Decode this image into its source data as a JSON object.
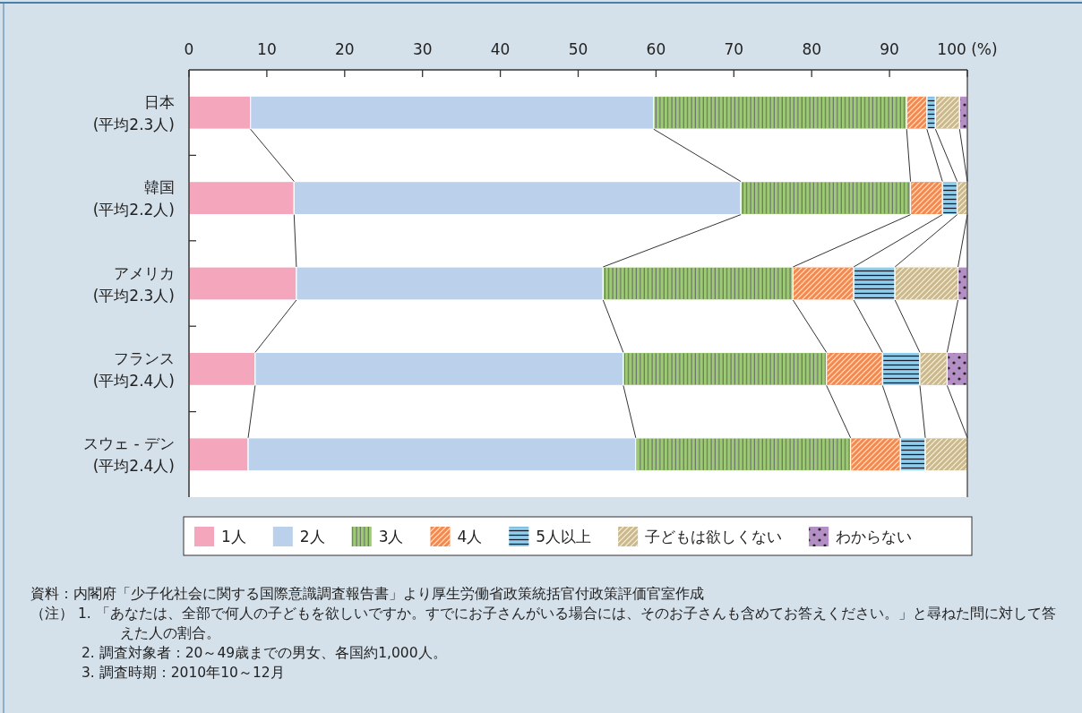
{
  "chart_data": {
    "type": "bar",
    "orientation": "horizontal",
    "stacked": true,
    "categories": [
      "日本\n(平均2.3人)",
      "韓国\n(平均2.2人)",
      "アメリカ\n(平均2.3人)",
      "フランス\n(平均2.4人)",
      "スウェ - デン\n(平均2.4人)"
    ],
    "series": [
      {
        "name": "1人",
        "color": "#f4a6bd",
        "values": [
          7.9,
          13.5,
          13.8,
          8.5,
          7.6
        ]
      },
      {
        "name": "2人",
        "color": "#bad0eb",
        "values": [
          51.8,
          57.4,
          39.4,
          47.3,
          49.8
        ]
      },
      {
        "name": "3人",
        "color": "#9dcb72",
        "values": [
          32.5,
          21.8,
          24.4,
          26.1,
          27.6
        ]
      },
      {
        "name": "4人",
        "color": "#f4894e",
        "values": [
          2.6,
          4.1,
          7.8,
          7.2,
          6.4
        ]
      },
      {
        "name": "5人以上",
        "color": "#8ecfee",
        "values": [
          1.1,
          1.9,
          5.3,
          4.8,
          3.2
        ]
      },
      {
        "name": "子どもは欲しくない",
        "color": "#cbb98b",
        "values": [
          3.1,
          1.3,
          8.1,
          3.5,
          5.4
        ]
      },
      {
        "name": "わからない",
        "color": "#b48fc6",
        "values": [
          1.0,
          0,
          1.2,
          2.6,
          0
        ]
      }
    ],
    "xlim": [
      0,
      100
    ],
    "xticks": [
      0,
      10,
      20,
      30,
      40,
      50,
      60,
      70,
      80,
      90,
      {
        "value": 100,
        "label": "100 (%)"
      }
    ],
    "legend": "bottom",
    "annotations": [
      "資料：内閣府「少子化社会に関する国際意識調査報告書」より厚生労働省政策統括官付政策評価官室作成",
      "（注） 1. 「あなたは、全部で何人の子どもを欲しいですか。すでにお子さんがいる場合には、そのお子さんも含めてお答えください。」と尋ねた問に対して答えた人の割合。",
      "2. 調査対象者：20～49歳までの男女、各国約1,000人。",
      "3. 調査時期：2010年10～12月"
    ]
  }
}
